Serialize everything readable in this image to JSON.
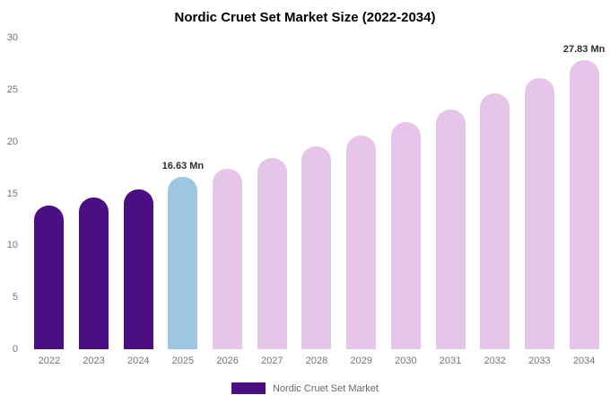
{
  "page": {
    "background_color": "#ffffff"
  },
  "chart_data": {
    "type": "bar",
    "title": "Nordic Cruet Set Market Size (2022-2034)",
    "categories": [
      "2022",
      "2023",
      "2024",
      "2025",
      "2026",
      "2027",
      "2028",
      "2029",
      "2030",
      "2031",
      "2032",
      "2033",
      "2034"
    ],
    "values": [
      13.8,
      14.6,
      15.4,
      16.63,
      17.4,
      18.4,
      19.5,
      20.6,
      21.9,
      23.1,
      24.6,
      26.1,
      27.83
    ],
    "unit": "Mn",
    "xlabel": "",
    "ylabel": "",
    "ylim": [
      0,
      30
    ],
    "yticks": [
      0,
      5,
      10,
      15,
      20,
      25,
      30
    ],
    "grid": false,
    "legend_position": "bottom",
    "legend_label": "Nordic Cruet Set Market",
    "legend_swatch_color": "#4b0f82",
    "bar_colors": [
      "#4b0f82",
      "#4b0f82",
      "#4b0f82",
      "#9dc6e0",
      "#e6c6e8",
      "#e6c6e8",
      "#e6c6e8",
      "#e6c6e8",
      "#e6c6e8",
      "#e6c6e8",
      "#e6c6e8",
      "#e6c6e8",
      "#e6c6e8"
    ],
    "color_roles": {
      "historical": "#4b0f82",
      "current_year": "#9dc6e0",
      "forecast": "#e6c6e8"
    },
    "annotations": [
      {
        "index": 3,
        "text": "16.63 Mn"
      },
      {
        "index": 12,
        "text": "27.83 Mn"
      }
    ]
  }
}
